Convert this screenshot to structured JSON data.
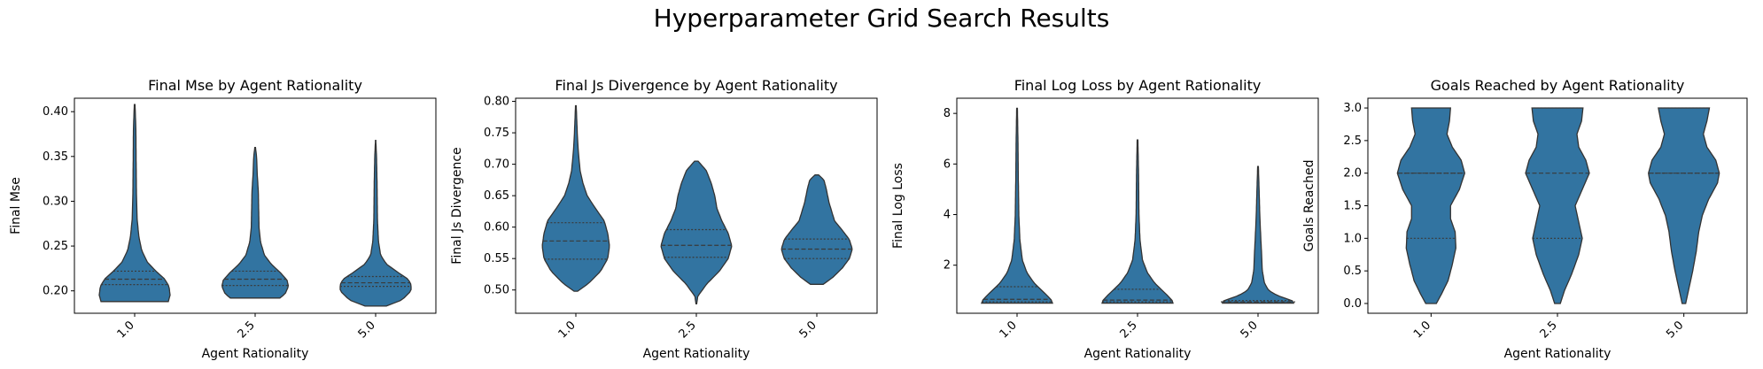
{
  "suptitle": "Hyperparameter Grid Search Results",
  "colors": {
    "violin": "#3274a1",
    "edge": "#333333",
    "quartile": "#3a3a3a"
  },
  "chart_data": [
    {
      "type": "violin",
      "title": "Final Mse by Agent Rationality",
      "xlabel": "Agent Rationality",
      "ylabel": "Final Mse",
      "categories": [
        "1.0",
        "2.5",
        "5.0"
      ],
      "ylim": [
        0.175,
        0.415
      ],
      "yticks": [
        0.2,
        0.25,
        0.3,
        0.35,
        0.4
      ],
      "ytick_labels": [
        "0.20",
        "0.25",
        "0.30",
        "0.35",
        "0.40"
      ],
      "violins": [
        {
          "min": 0.188,
          "max": 0.408,
          "quartiles": [
            0.207,
            0.213,
            0.222
          ],
          "profile": [
            [
              0.188,
              0.95
            ],
            [
              0.195,
              1.0
            ],
            [
              0.205,
              0.97
            ],
            [
              0.213,
              0.85
            ],
            [
              0.222,
              0.6
            ],
            [
              0.232,
              0.36
            ],
            [
              0.245,
              0.2
            ],
            [
              0.26,
              0.12
            ],
            [
              0.28,
              0.07
            ],
            [
              0.31,
              0.05
            ],
            [
              0.35,
              0.04
            ],
            [
              0.38,
              0.035
            ],
            [
              0.408,
              0.01
            ]
          ]
        },
        {
          "min": 0.192,
          "max": 0.36,
          "quartiles": [
            0.206,
            0.213,
            0.222
          ],
          "profile": [
            [
              0.192,
              0.7
            ],
            [
              0.197,
              0.85
            ],
            [
              0.205,
              0.94
            ],
            [
              0.212,
              0.9
            ],
            [
              0.22,
              0.72
            ],
            [
              0.23,
              0.45
            ],
            [
              0.24,
              0.26
            ],
            [
              0.255,
              0.15
            ],
            [
              0.27,
              0.11
            ],
            [
              0.29,
              0.1
            ],
            [
              0.31,
              0.09
            ],
            [
              0.33,
              0.06
            ],
            [
              0.35,
              0.04
            ],
            [
              0.36,
              0.01
            ]
          ]
        },
        {
          "min": 0.183,
          "max": 0.368,
          "quartiles": [
            0.205,
            0.209,
            0.216
          ],
          "profile": [
            [
              0.183,
              0.3
            ],
            [
              0.19,
              0.75
            ],
            [
              0.2,
              1.0
            ],
            [
              0.207,
              1.0
            ],
            [
              0.213,
              0.92
            ],
            [
              0.22,
              0.65
            ],
            [
              0.23,
              0.3
            ],
            [
              0.24,
              0.14
            ],
            [
              0.255,
              0.08
            ],
            [
              0.28,
              0.05
            ],
            [
              0.32,
              0.04
            ],
            [
              0.35,
              0.025
            ],
            [
              0.368,
              0.005
            ]
          ]
        }
      ]
    },
    {
      "type": "violin",
      "title": "Final Js Divergence by Agent Rationality",
      "xlabel": "Agent Rationality",
      "ylabel": "Final Js Divergence",
      "categories": [
        "1.0",
        "2.5",
        "5.0"
      ],
      "ylim": [
        0.463,
        0.805
      ],
      "yticks": [
        0.5,
        0.55,
        0.6,
        0.65,
        0.7,
        0.75,
        0.8
      ],
      "ytick_labels": [
        "0.50",
        "0.55",
        "0.60",
        "0.65",
        "0.70",
        "0.75",
        "0.80"
      ],
      "violins": [
        {
          "min": 0.498,
          "max": 0.793,
          "quartiles": [
            0.549,
            0.578,
            0.607
          ],
          "profile": [
            [
              0.498,
              0.05
            ],
            [
              0.51,
              0.35
            ],
            [
              0.53,
              0.7
            ],
            [
              0.55,
              0.9
            ],
            [
              0.57,
              0.95
            ],
            [
              0.59,
              0.9
            ],
            [
              0.61,
              0.8
            ],
            [
              0.63,
              0.55
            ],
            [
              0.65,
              0.32
            ],
            [
              0.67,
              0.2
            ],
            [
              0.69,
              0.12
            ],
            [
              0.72,
              0.07
            ],
            [
              0.75,
              0.04
            ],
            [
              0.793,
              0.01
            ]
          ]
        },
        {
          "min": 0.478,
          "max": 0.705,
          "quartiles": [
            0.552,
            0.571,
            0.596
          ],
          "profile": [
            [
              0.478,
              0.01
            ],
            [
              0.49,
              0.04
            ],
            [
              0.51,
              0.3
            ],
            [
              0.53,
              0.65
            ],
            [
              0.55,
              0.9
            ],
            [
              0.57,
              1.0
            ],
            [
              0.59,
              0.9
            ],
            [
              0.61,
              0.72
            ],
            [
              0.63,
              0.58
            ],
            [
              0.65,
              0.52
            ],
            [
              0.67,
              0.42
            ],
            [
              0.69,
              0.28
            ],
            [
              0.705,
              0.05
            ]
          ]
        },
        {
          "min": 0.509,
          "max": 0.683,
          "quartiles": [
            0.55,
            0.565,
            0.581
          ],
          "profile": [
            [
              0.509,
              0.18
            ],
            [
              0.52,
              0.45
            ],
            [
              0.535,
              0.72
            ],
            [
              0.55,
              0.92
            ],
            [
              0.565,
              1.0
            ],
            [
              0.58,
              0.92
            ],
            [
              0.595,
              0.72
            ],
            [
              0.61,
              0.5
            ],
            [
              0.625,
              0.42
            ],
            [
              0.64,
              0.34
            ],
            [
              0.66,
              0.27
            ],
            [
              0.675,
              0.2
            ],
            [
              0.683,
              0.05
            ]
          ]
        }
      ]
    },
    {
      "type": "violin",
      "title": "Final Log Loss by Agent Rationality",
      "xlabel": "Agent Rationality",
      "ylabel": "Final Log Loss",
      "categories": [
        "1.0",
        "2.5",
        "5.0"
      ],
      "ylim": [
        0.1,
        8.6
      ],
      "yticks": [
        2,
        4,
        6,
        8
      ],
      "ytick_labels": [
        "2",
        "4",
        "6",
        "8"
      ],
      "violins": [
        {
          "min": 0.5,
          "max": 8.2,
          "quartiles": [
            0.55,
            0.65,
            1.15
          ],
          "profile": [
            [
              0.5,
              1.0
            ],
            [
              0.6,
              0.98
            ],
            [
              0.8,
              0.85
            ],
            [
              1.0,
              0.7
            ],
            [
              1.3,
              0.48
            ],
            [
              1.7,
              0.28
            ],
            [
              2.2,
              0.15
            ],
            [
              3.0,
              0.08
            ],
            [
              4.0,
              0.05
            ],
            [
              5.5,
              0.035
            ],
            [
              7.0,
              0.025
            ],
            [
              8.2,
              0.01
            ]
          ]
        },
        {
          "min": 0.5,
          "max": 6.95,
          "quartiles": [
            0.55,
            0.62,
            1.05
          ],
          "profile": [
            [
              0.5,
              1.0
            ],
            [
              0.6,
              0.98
            ],
            [
              0.8,
              0.85
            ],
            [
              1.0,
              0.7
            ],
            [
              1.3,
              0.48
            ],
            [
              1.7,
              0.28
            ],
            [
              2.2,
              0.14
            ],
            [
              3.0,
              0.07
            ],
            [
              4.0,
              0.04
            ],
            [
              5.5,
              0.03
            ],
            [
              6.95,
              0.01
            ]
          ]
        },
        {
          "min": 0.5,
          "max": 5.9,
          "quartiles": [
            0.52,
            0.55,
            0.6
          ],
          "profile": [
            [
              0.5,
              1.0
            ],
            [
              0.55,
              1.05
            ],
            [
              0.65,
              0.85
            ],
            [
              0.8,
              0.55
            ],
            [
              1.0,
              0.3
            ],
            [
              1.3,
              0.18
            ],
            [
              1.8,
              0.12
            ],
            [
              2.5,
              0.1
            ],
            [
              3.0,
              0.08
            ],
            [
              4.0,
              0.05
            ],
            [
              5.0,
              0.03
            ],
            [
              5.9,
              0.01
            ]
          ]
        }
      ]
    },
    {
      "type": "violin",
      "title": "Goals Reached by Agent Rationality",
      "xlabel": "Agent Rationality",
      "ylabel": "Goals Reached",
      "categories": [
        "1.0",
        "2.5",
        "5.0"
      ],
      "ylim": [
        -0.15,
        3.15
      ],
      "yticks": [
        0.0,
        0.5,
        1.0,
        1.5,
        2.0,
        2.5,
        3.0
      ],
      "ytick_labels": [
        "0.0",
        "0.5",
        "1.0",
        "1.5",
        "2.0",
        "2.5",
        "3.0"
      ],
      "violins": [
        {
          "min": 0.0,
          "max": 3.0,
          "quartiles": [
            1.0,
            2.0,
            2.0
          ],
          "profile": [
            [
              0.0,
              0.15
            ],
            [
              0.15,
              0.3
            ],
            [
              0.35,
              0.48
            ],
            [
              0.6,
              0.6
            ],
            [
              0.85,
              0.7
            ],
            [
              1.1,
              0.68
            ],
            [
              1.3,
              0.55
            ],
            [
              1.5,
              0.55
            ],
            [
              1.75,
              0.8
            ],
            [
              2.0,
              0.95
            ],
            [
              2.2,
              0.85
            ],
            [
              2.4,
              0.6
            ],
            [
              2.6,
              0.45
            ],
            [
              2.8,
              0.52
            ],
            [
              3.0,
              0.55
            ]
          ]
        },
        {
          "min": 0.0,
          "max": 3.0,
          "quartiles": [
            1.0,
            2.0,
            3.0
          ],
          "profile": [
            [
              0.0,
              0.08
            ],
            [
              0.2,
              0.2
            ],
            [
              0.45,
              0.4
            ],
            [
              0.75,
              0.6
            ],
            [
              1.0,
              0.7
            ],
            [
              1.25,
              0.6
            ],
            [
              1.5,
              0.5
            ],
            [
              1.75,
              0.7
            ],
            [
              2.0,
              0.9
            ],
            [
              2.2,
              0.8
            ],
            [
              2.4,
              0.6
            ],
            [
              2.6,
              0.55
            ],
            [
              2.8,
              0.68
            ],
            [
              3.0,
              0.72
            ]
          ]
        },
        {
          "min": 0.0,
          "max": 3.0,
          "quartiles": [
            2.0,
            2.0,
            3.0
          ],
          "profile": [
            [
              0.0,
              0.05
            ],
            [
              0.25,
              0.15
            ],
            [
              0.5,
              0.25
            ],
            [
              0.8,
              0.35
            ],
            [
              1.1,
              0.42
            ],
            [
              1.35,
              0.52
            ],
            [
              1.6,
              0.7
            ],
            [
              1.85,
              0.95
            ],
            [
              2.0,
              1.0
            ],
            [
              2.2,
              0.9
            ],
            [
              2.4,
              0.65
            ],
            [
              2.6,
              0.55
            ],
            [
              2.8,
              0.65
            ],
            [
              3.0,
              0.72
            ]
          ]
        }
      ]
    }
  ]
}
